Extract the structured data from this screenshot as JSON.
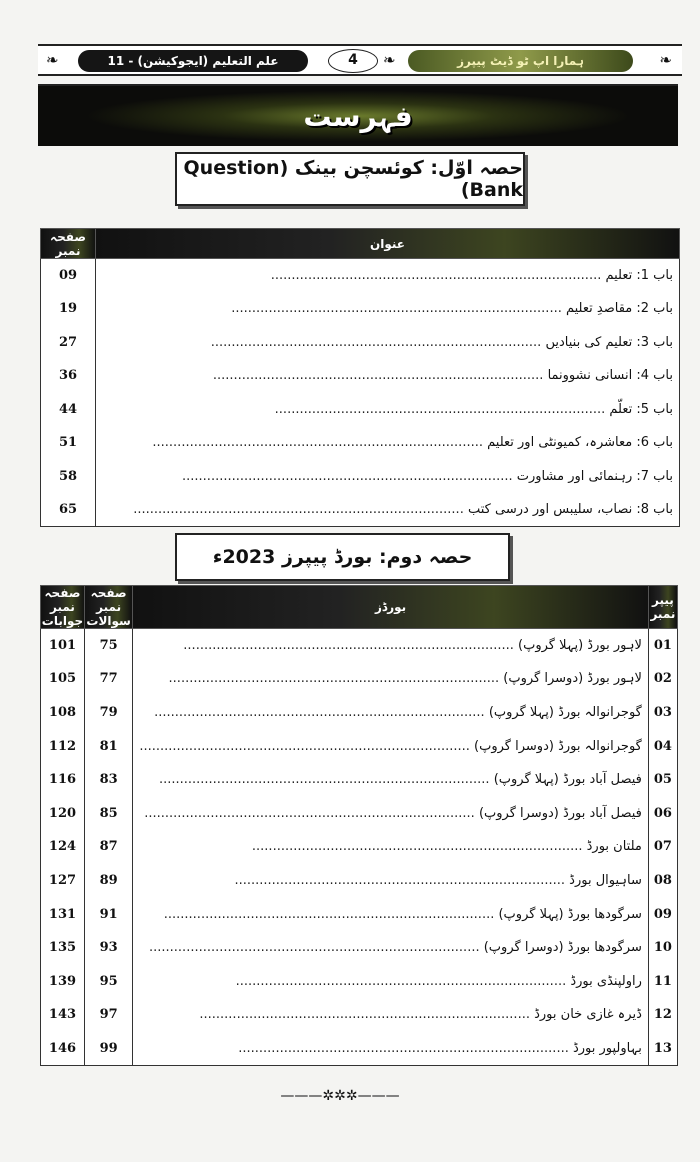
{
  "header": {
    "subject": "علم التعلیم (ایجوکیشن) - 11",
    "page_number": "4",
    "series": "ہمارا اپ ٹو ڈیٹ پیپرز",
    "ornament": "❧"
  },
  "title": "فہرست",
  "part1": {
    "heading": "حصہ اوّل: کوئسچن بینک (Question Bank)",
    "columns": {
      "page": "صفحہ نمبر",
      "topic": "عنوان"
    },
    "rows": [
      {
        "title": "باب 1: تعلیم",
        "page": "09"
      },
      {
        "title": "باب 2: مقاصدِ تعلیم",
        "page": "19"
      },
      {
        "title": "باب 3: تعلیم کی بنیادیں",
        "page": "27"
      },
      {
        "title": "باب 4: انسانی نشوونما",
        "page": "36"
      },
      {
        "title": "باب 5: تعلّم",
        "page": "44"
      },
      {
        "title": "باب 6: معاشرہ، کمیونٹی اور تعلیم",
        "page": "51"
      },
      {
        "title": "باب 7: رہنمائی اور مشاورت",
        "page": "58"
      },
      {
        "title": "باب 8: نصاب، سلیبس اور درسی کتب",
        "page": "65"
      }
    ]
  },
  "part2": {
    "heading": "حصہ دوم: بورڈ پیپرز 2023ء",
    "columns": {
      "paper": "پیپر نمبر",
      "boards": "بورڈز",
      "questions_page": "صفحہ نمبر سوالات",
      "answers_page": "صفحہ نمبر جوابات"
    },
    "rows": [
      {
        "paper": "01",
        "board": "لاہور بورڈ (پہلا گروپ)",
        "q": "75",
        "a": "101"
      },
      {
        "paper": "02",
        "board": "لاہور بورڈ (دوسرا گروپ)",
        "q": "77",
        "a": "105"
      },
      {
        "paper": "03",
        "board": "گوجرانوالہ بورڈ (پہلا گروپ)",
        "q": "79",
        "a": "108"
      },
      {
        "paper": "04",
        "board": "گوجرانوالہ بورڈ (دوسرا گروپ)",
        "q": "81",
        "a": "112"
      },
      {
        "paper": "05",
        "board": "فیصل آباد بورڈ (پہلا گروپ)",
        "q": "83",
        "a": "116"
      },
      {
        "paper": "06",
        "board": "فیصل آباد بورڈ (دوسرا گروپ)",
        "q": "85",
        "a": "120"
      },
      {
        "paper": "07",
        "board": "ملتان بورڈ",
        "q": "87",
        "a": "124"
      },
      {
        "paper": "08",
        "board": "ساہیوال بورڈ",
        "q": "89",
        "a": "127"
      },
      {
        "paper": "09",
        "board": "سرگودھا بورڈ (پہلا گروپ)",
        "q": "91",
        "a": "131"
      },
      {
        "paper": "10",
        "board": "سرگودھا بورڈ (دوسرا گروپ)",
        "q": "93",
        "a": "135"
      },
      {
        "paper": "11",
        "board": "راولپنڈی بورڈ",
        "q": "95",
        "a": "139"
      },
      {
        "paper": "12",
        "board": "ڈیرہ غازی خان بورڈ",
        "q": "97",
        "a": "143"
      },
      {
        "paper": "13",
        "board": "بہاولپور بورڈ",
        "q": "99",
        "a": "146"
      }
    ]
  },
  "footer": {
    "ornament": "———✲✲✲———"
  }
}
